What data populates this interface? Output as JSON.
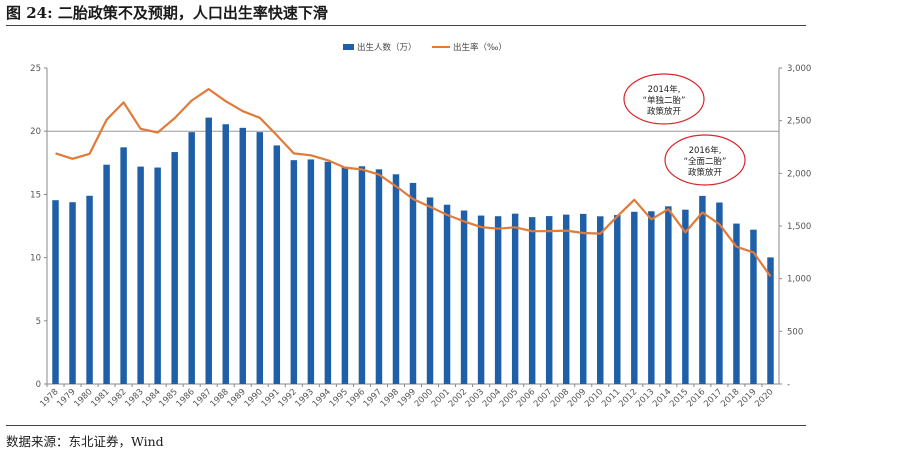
{
  "figure_title": "图 24:  二胎政策不及预期，人口出生率快速下滑",
  "source": "数据来源：东北证券，Wind",
  "colors": {
    "bar": "#1f5fa8",
    "line": "#e07b39",
    "annotation_circle": "#d9262b",
    "gridline": "#999999"
  },
  "chart_data": {
    "type": "bar+line",
    "categories": [
      "1978",
      "1979",
      "1980",
      "1981",
      "1982",
      "1983",
      "1984",
      "1985",
      "1986",
      "1987",
      "1988",
      "1989",
      "1990",
      "1991",
      "1992",
      "1993",
      "1994",
      "1995",
      "1996",
      "1997",
      "1998",
      "1999",
      "2000",
      "2001",
      "2002",
      "2003",
      "2004",
      "2005",
      "2006",
      "2007",
      "2008",
      "2009",
      "2010",
      "2011",
      "2012",
      "2013",
      "2014",
      "2015",
      "2016",
      "2017",
      "2018",
      "2019",
      "2020"
    ],
    "series": [
      {
        "name": "出生人数（万）",
        "type": "bar",
        "axis": "left",
        "values": [
          1745,
          1726,
          1787,
          2082,
          2247,
          2064,
          2055,
          2202,
          2391,
          2529,
          2466,
          2432,
          2391,
          2265,
          2125,
          2132,
          2110,
          2063,
          2067,
          2038,
          1991,
          1909,
          1771,
          1702,
          1647,
          1599,
          1593,
          1617,
          1584,
          1594,
          1608,
          1615,
          1592,
          1604,
          1635,
          1640,
          1687,
          1655,
          1786,
          1723,
          1523,
          1465,
          1202
        ]
      },
      {
        "name": "出生率（‰）",
        "type": "line",
        "axis": "right",
        "values": [
          18.25,
          17.82,
          18.21,
          20.91,
          22.28,
          20.19,
          19.9,
          21.04,
          22.43,
          23.33,
          22.37,
          21.58,
          21.06,
          19.68,
          18.24,
          18.09,
          17.7,
          17.12,
          16.98,
          16.57,
          15.64,
          14.64,
          14.03,
          13.38,
          12.86,
          12.41,
          12.29,
          12.4,
          12.09,
          12.1,
          12.14,
          11.95,
          11.9,
          13.27,
          14.57,
          13.03,
          13.83,
          11.99,
          13.57,
          12.64,
          10.86,
          10.41,
          8.52
        ]
      }
    ],
    "left_axis": {
      "min": 0,
      "max": 25,
      "ticks": [
        "0",
        "5",
        "10",
        "15",
        "20",
        "25"
      ]
    },
    "right_axis": {
      "min": 0,
      "max": 3000,
      "ticks": [
        "-",
        "500",
        "1,000",
        "1,500",
        "2,000",
        "2,500",
        "3,000"
      ]
    },
    "legend": {
      "position": "top-center",
      "items": [
        "出生人数（万）",
        "出生率（‰）"
      ]
    },
    "gridline_value_left": 20,
    "annotations": [
      {
        "year": "2014",
        "lines": [
          "2014年,",
          "“单独二胎”",
          "政策放开"
        ]
      },
      {
        "year": "2016",
        "lines": [
          "2016年,",
          "“全面二胎”",
          "政策放开"
        ]
      }
    ]
  }
}
